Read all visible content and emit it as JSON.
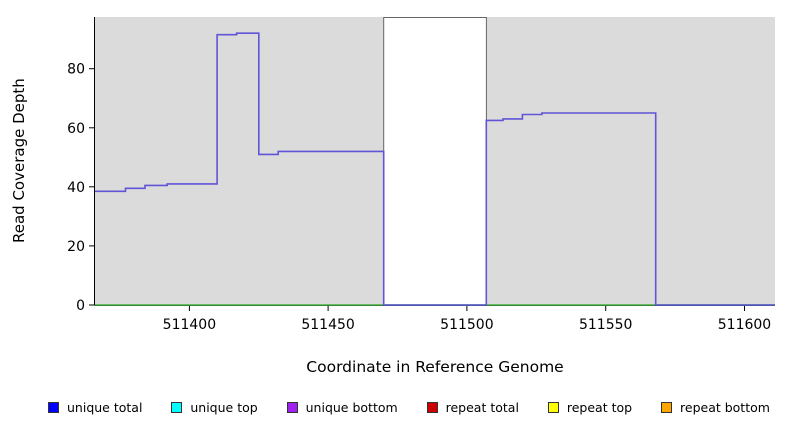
{
  "chart_data": {
    "type": "line",
    "title": "",
    "xlabel": "Coordinate in Reference Genome",
    "ylabel": "Read Coverage Depth",
    "xlim": [
      511366,
      511611
    ],
    "ylim": [
      0,
      97.5
    ],
    "x_ticks": [
      511400,
      511450,
      511500,
      511550,
      511600
    ],
    "y_ticks": [
      0,
      20,
      40,
      60,
      80
    ],
    "panel_bg": "#DBDBDB",
    "grid": "off",
    "legend_position": "bottom",
    "gap_region": {
      "x0": 511470,
      "x1": 511507,
      "color": "#FFFFFF",
      "border": "#666666"
    },
    "series": [
      {
        "id": "unique-bottom",
        "name": "unique bottom (visible coverage step line)",
        "color": "#5F55D6",
        "step_points": [
          [
            511366,
            38.5
          ],
          [
            511377,
            39.5
          ],
          [
            511384,
            40.5
          ],
          [
            511392,
            41
          ],
          [
            511410,
            91.5
          ],
          [
            511417,
            92
          ],
          [
            511425,
            51
          ],
          [
            511432,
            52
          ],
          [
            511470,
            0
          ],
          [
            511507,
            62.5
          ],
          [
            511513,
            63
          ],
          [
            511520,
            64.5
          ],
          [
            511527,
            65
          ],
          [
            511568,
            0
          ],
          [
            511611,
            0
          ]
        ]
      },
      {
        "id": "zero-baseline",
        "name": "zero coverage baseline",
        "color": "#44B244",
        "step_points": [
          [
            511366,
            0
          ],
          [
            511611,
            0
          ]
        ]
      }
    ]
  },
  "legend": {
    "items": [
      {
        "label": "unique total",
        "color": "#0000FF"
      },
      {
        "label": "unique top",
        "color": "#00FFFF"
      },
      {
        "label": "unique bottom",
        "color": "#A020F0"
      },
      {
        "label": "repeat total",
        "color": "#CC0000"
      },
      {
        "label": "repeat top",
        "color": "#FFFF00"
      },
      {
        "label": "repeat bottom",
        "color": "#FFA500"
      }
    ]
  }
}
